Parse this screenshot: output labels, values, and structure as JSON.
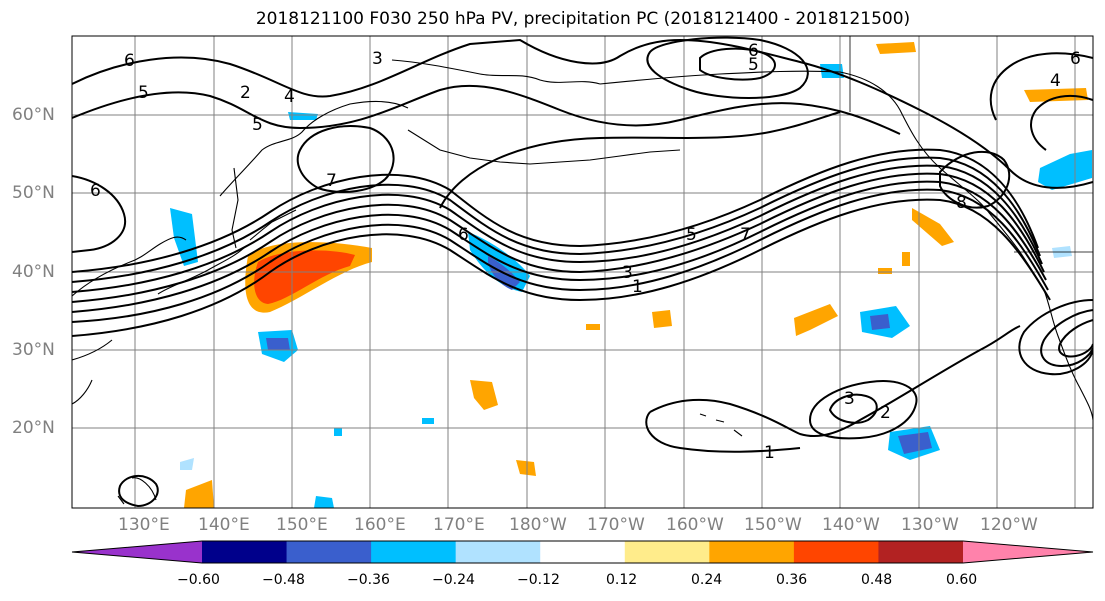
{
  "title": "2018121100 F030 250 hPa PV, precipitation PC (2018121400 - 2018121500)",
  "lat_labels": [
    "60°N",
    "50°N",
    "40°N",
    "30°N",
    "20°N"
  ],
  "lon_labels": [
    "130°E",
    "140°E",
    "150°E",
    "160°E",
    "170°E",
    "180°W",
    "170°W",
    "160°W",
    "150°W",
    "140°W",
    "130°W",
    "120°W"
  ],
  "contour_labels": [
    "6",
    "5",
    "3",
    "2",
    "4",
    "5",
    "7",
    "6",
    "6",
    "5",
    "4",
    "6",
    "5",
    "7",
    "3",
    "1",
    "8",
    "6",
    "3",
    "2",
    "1"
  ],
  "colorbar": {
    "ticks": [
      "−0.60",
      "−0.48",
      "−0.36",
      "−0.24",
      "−0.12",
      "0.12",
      "0.24",
      "0.36",
      "0.48",
      "0.60"
    ],
    "colors": [
      "#9932cc",
      "#00008b",
      "#3a5fcd",
      "#00bfff",
      "#b0e2ff",
      "#ffffff",
      "#ffec8b",
      "#ffa500",
      "#ff4500",
      "#b22222",
      "#ff82ab"
    ]
  },
  "colors": {
    "contour": "#000000",
    "gridline": "#808080",
    "axis_label": "#808080"
  }
}
